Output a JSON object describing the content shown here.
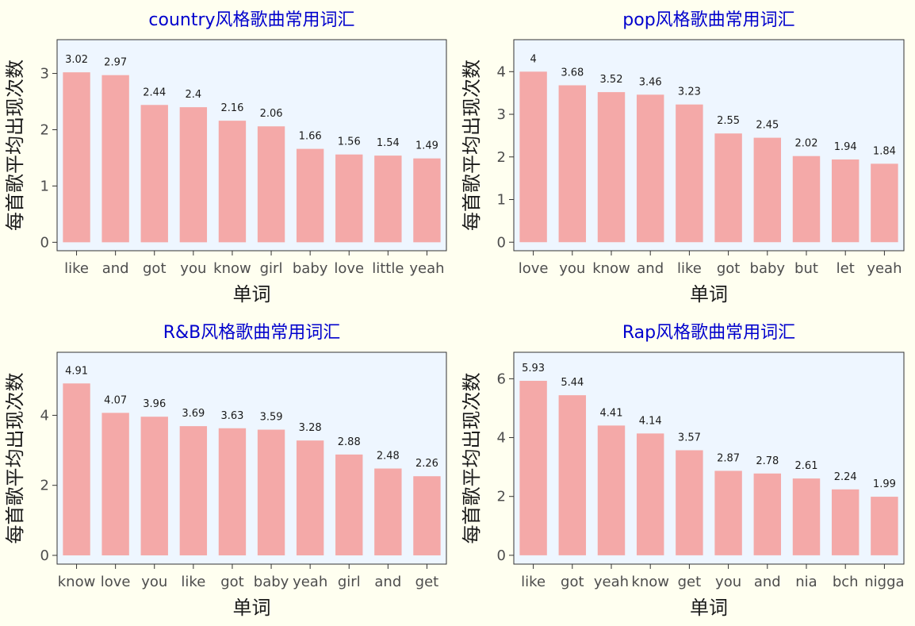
{
  "figure": {
    "background": "#fffff0",
    "panel_background": "#eef6ff",
    "bar_color": "#f4a9a8",
    "title_color": "#0000cd"
  },
  "chart_data": [
    {
      "type": "bar",
      "title": "country风格歌曲常用词汇",
      "xlabel": "单词",
      "ylabel": "每首歌平均出现次数",
      "categories": [
        "like",
        "and",
        "got",
        "you",
        "know",
        "girl",
        "baby",
        "love",
        "little",
        "yeah"
      ],
      "values": [
        3.02,
        2.97,
        2.44,
        2.4,
        2.16,
        2.06,
        1.66,
        1.56,
        1.54,
        1.49
      ],
      "value_labels": [
        "3.02",
        "2.97",
        "2.44",
        "2.4",
        "2.16",
        "2.06",
        "1.66",
        "1.56",
        "1.54",
        "1.49"
      ],
      "yticks": [
        0,
        1,
        2,
        3
      ],
      "ylim": [
        -0.15,
        3.6
      ],
      "grid": false,
      "legend": false
    },
    {
      "type": "bar",
      "title": "pop风格歌曲常用词汇",
      "xlabel": "单词",
      "ylabel": "每首歌平均出现次数",
      "categories": [
        "love",
        "you",
        "know",
        "and",
        "like",
        "got",
        "baby",
        "but",
        "let",
        "yeah"
      ],
      "values": [
        4,
        3.68,
        3.52,
        3.46,
        3.23,
        2.55,
        2.45,
        2.02,
        1.94,
        1.84
      ],
      "value_labels": [
        "4",
        "3.68",
        "3.52",
        "3.46",
        "3.23",
        "2.55",
        "2.45",
        "2.02",
        "1.94",
        "1.84"
      ],
      "yticks": [
        0,
        1,
        2,
        3,
        4
      ],
      "ylim": [
        -0.2,
        4.75
      ],
      "grid": false,
      "legend": false
    },
    {
      "type": "bar",
      "title": "R&B风格歌曲常用词汇",
      "xlabel": "单词",
      "ylabel": "每首歌平均出现次数",
      "categories": [
        "know",
        "love",
        "you",
        "like",
        "got",
        "baby",
        "yeah",
        "girl",
        "and",
        "get"
      ],
      "values": [
        4.91,
        4.07,
        3.96,
        3.69,
        3.63,
        3.59,
        3.28,
        2.88,
        2.48,
        2.26
      ],
      "value_labels": [
        "4.91",
        "4.07",
        "3.96",
        "3.69",
        "3.63",
        "3.59",
        "3.28",
        "2.88",
        "2.48",
        "2.26"
      ],
      "yticks": [
        0,
        2,
        4
      ],
      "ylim": [
        -0.25,
        5.8
      ],
      "grid": false,
      "legend": false
    },
    {
      "type": "bar",
      "title": "Rap风格歌曲常用词汇",
      "xlabel": "单词",
      "ylabel": "每首歌平均出现次数",
      "categories": [
        "like",
        "got",
        "yeah",
        "know",
        "get",
        "you",
        "and",
        "nia",
        "bch",
        "nigga"
      ],
      "values": [
        5.93,
        5.44,
        4.41,
        4.14,
        3.57,
        2.87,
        2.78,
        2.61,
        2.24,
        1.99
      ],
      "value_labels": [
        "5.93",
        "5.44",
        "4.41",
        "4.14",
        "3.57",
        "2.87",
        "2.78",
        "2.61",
        "2.24",
        "1.99"
      ],
      "yticks": [
        0,
        2,
        4,
        6
      ],
      "ylim": [
        -0.3,
        6.9
      ],
      "grid": false,
      "legend": false
    }
  ]
}
